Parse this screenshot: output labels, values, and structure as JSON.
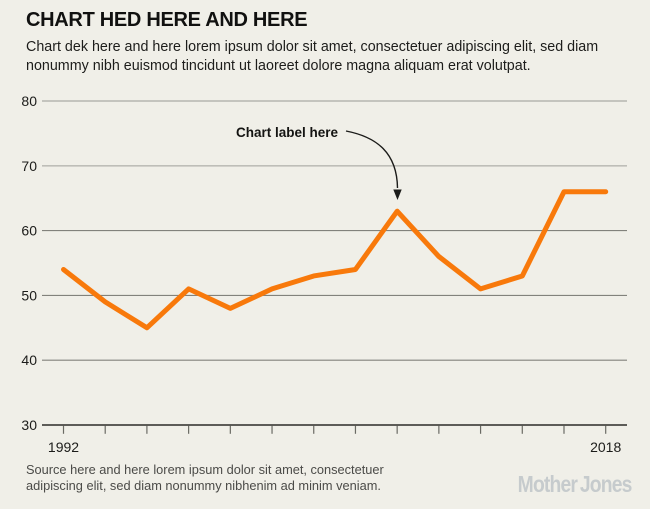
{
  "header": {
    "title": "CHART HED HERE AND HERE",
    "dek": "Chart dek here and here lorem ipsum dolor sit amet, consectetuer adipiscing elit, sed diam nonummy nibh euismod tincidunt ut laoreet dolore magna aliquam erat volutpat."
  },
  "chart_data": {
    "type": "line",
    "title": "CHART HED HERE AND HERE",
    "x": [
      1992,
      1994,
      1996,
      1998,
      2000,
      2002,
      2004,
      2006,
      2008,
      2010,
      2012,
      2014,
      2016,
      2018
    ],
    "values": [
      54,
      49,
      45,
      51,
      48,
      51,
      53,
      54,
      63,
      56,
      51,
      53,
      66,
      66
    ],
    "line_color": "#f8790b",
    "ylim": [
      30,
      80
    ],
    "yticks": [
      30,
      40,
      50,
      60,
      70,
      80
    ],
    "xtick_labels": [
      "1992",
      "2018"
    ],
    "grid": "horizontal",
    "legend": "none",
    "annotation": {
      "text": "Chart label here",
      "target_x": 2008,
      "target_y": 63
    }
  },
  "footer": {
    "source": "Source here and here lorem ipsum dolor sit amet, consectetuer adipiscing elit, sed diam nonummy nibhenim ad minim veniam.",
    "logo": "Mother Jones"
  },
  "colors": {
    "background": "#f0efe8",
    "line": "#f8790b",
    "grid_light": "#bebeb8",
    "grid_mid": "#82827c",
    "axis": "#2c2c29",
    "logo_gray": "#c6cbcd"
  }
}
